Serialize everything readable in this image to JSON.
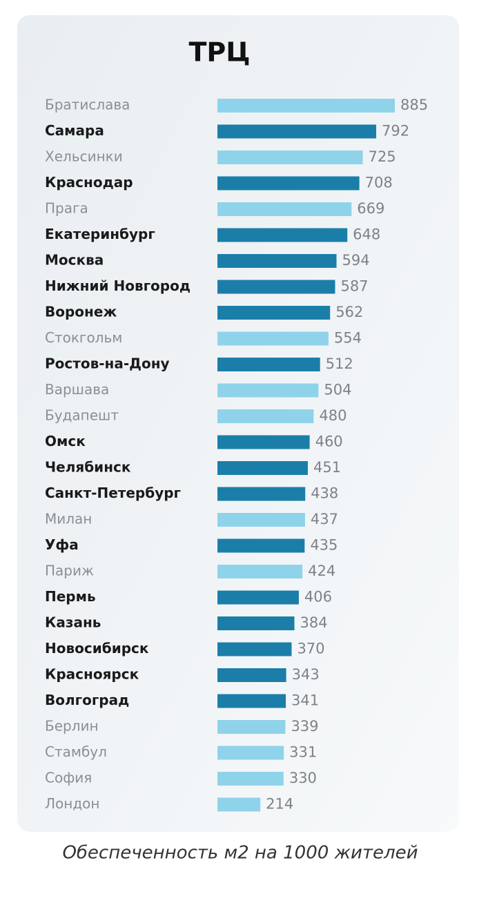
{
  "chart_data": {
    "type": "bar",
    "orientation": "horizontal",
    "title": "ТРЦ",
    "categories": [
      "Братислава",
      "Самара",
      "Хельсинки",
      "Краснодар",
      "Прага",
      "Екатеринбург",
      "Москва",
      "Нижний Новгород",
      "Воронеж",
      "Стокгольм",
      "Ростов-на-Дону",
      "Варшава",
      "Будапешт",
      "Омск",
      "Челябинск",
      "Санкт-Петербург",
      "Милан",
      "Уфа",
      "Париж",
      "Пермь",
      "Казань",
      "Новосибирск",
      "Красноярск",
      "Волгоград",
      "Берлин",
      "Стамбул",
      "София",
      "Лондон"
    ],
    "values": [
      885,
      792,
      725,
      708,
      669,
      648,
      594,
      587,
      562,
      554,
      512,
      504,
      480,
      460,
      451,
      438,
      437,
      435,
      424,
      406,
      384,
      370,
      343,
      341,
      339,
      331,
      330,
      214
    ],
    "highlight": [
      false,
      true,
      false,
      true,
      false,
      true,
      true,
      true,
      true,
      false,
      true,
      false,
      false,
      true,
      true,
      true,
      false,
      true,
      false,
      true,
      true,
      true,
      true,
      true,
      false,
      false,
      false,
      false
    ],
    "color": "#8fd3ea",
    "highlight_color": "#1b7ea9",
    "note": "Обеспеченность м2 на 1000 жителей"
  }
}
